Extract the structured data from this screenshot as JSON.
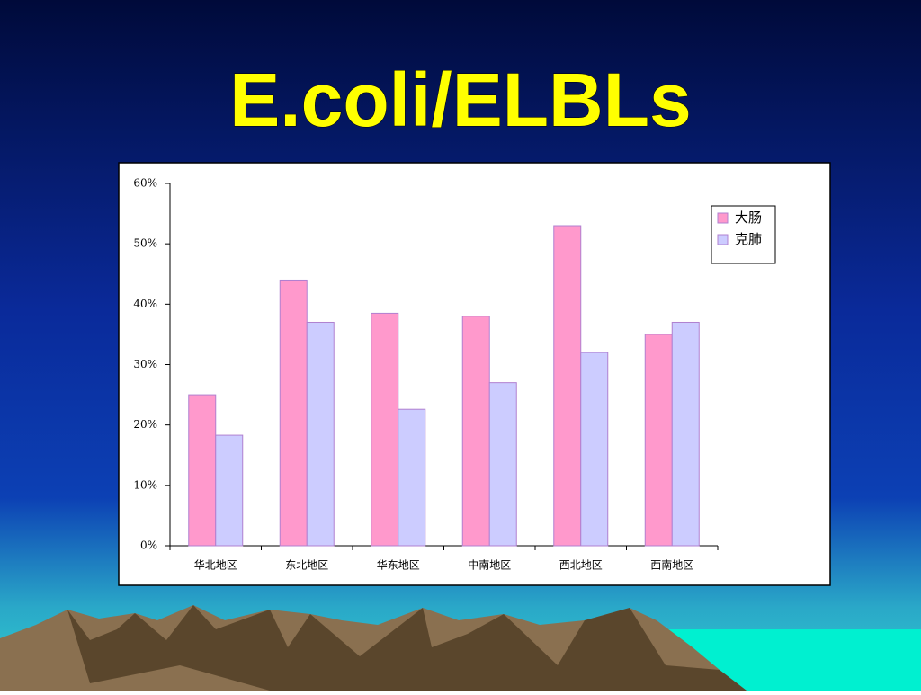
{
  "chart_data": {
    "type": "bar",
    "title": "E.coli/ELBLs",
    "categories": [
      "华北地区",
      "东北地区",
      "华东地区",
      "中南地区",
      "西北地区",
      "西南地区"
    ],
    "series": [
      {
        "name": "大肠",
        "color": "#ff99cc",
        "values": [
          25,
          44,
          38.5,
          38,
          53,
          35
        ]
      },
      {
        "name": "克肺",
        "color": "#ccccff",
        "values": [
          18.3,
          37,
          22.6,
          27,
          32,
          37
        ]
      }
    ],
    "ylim": [
      0,
      60
    ],
    "yticks": [
      {
        "value": 0,
        "label": "0%"
      },
      {
        "value": 10,
        "label": "10%"
      },
      {
        "value": 20,
        "label": "20%"
      },
      {
        "value": 30,
        "label": "30%"
      },
      {
        "value": 40,
        "label": "40%"
      },
      {
        "value": 50,
        "label": "50%"
      },
      {
        "value": 60,
        "label": "60%"
      }
    ],
    "grid": false,
    "legend": "top-right"
  }
}
